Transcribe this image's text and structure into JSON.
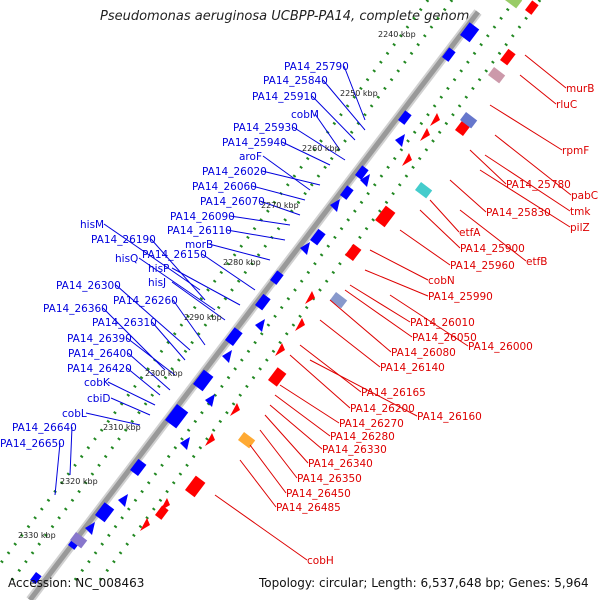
{
  "title": "Pseudomonas aeruginosa UCBPP-PA14, complete genome",
  "accession": "Accession: NC_008463",
  "summary": "Topology: circular; Length: 6,537,648 bp; Genes: 5,964",
  "colors": {
    "left_label": "#0000dd",
    "right_label": "#dd0000",
    "backbone": "#999999",
    "tick": "#228822",
    "reverse_gene": "#0000ff",
    "forward_gene": "#ff0000"
  },
  "kbp_ticks": [
    "2240 kbp",
    "2250 kbp",
    "2260 kbp",
    "2270 kbp",
    "2280 kbp",
    "2290 kbp",
    "2300 kbp",
    "2310 kbp",
    "2320 kbp",
    "2330 kbp"
  ],
  "left_labels": [
    "PA14_25790",
    "PA14_25840",
    "PA14_25910",
    "cobM",
    "PA14_25930",
    "PA14_25940",
    "aroF",
    "PA14_26020",
    "PA14_26060",
    "PA14_26070",
    "PA14_26090",
    "PA14_26110",
    "hisM",
    "PA14_26190",
    "morB",
    "hisQ",
    "PA14_26150",
    "hisP",
    "hisJ",
    "PA14_26300",
    "PA14_26260",
    "PA14_26360",
    "PA14_26310",
    "PA14_26390",
    "PA14_26400",
    "PA14_26420",
    "cobK",
    "cbiD",
    "cobL",
    "PA14_26640",
    "PA14_26650"
  ],
  "right_labels": [
    "murB",
    "rluC",
    "rpmF",
    "PA14_25780",
    "pabC",
    "tmk",
    "PA14_25830",
    "pilZ",
    "etfA",
    "PA14_25900",
    "etfB",
    "PA14_25960",
    "cobN",
    "PA14_25990",
    "PA14_26010",
    "PA14_26050",
    "PA14_26000",
    "PA14_26080",
    "PA14_26140",
    "PA14_26165",
    "PA14_26200",
    "PA14_26160",
    "PA14_26270",
    "PA14_26280",
    "PA14_26330",
    "PA14_26340",
    "PA14_26350",
    "PA14_26450",
    "PA14_26485",
    "cobH"
  ]
}
